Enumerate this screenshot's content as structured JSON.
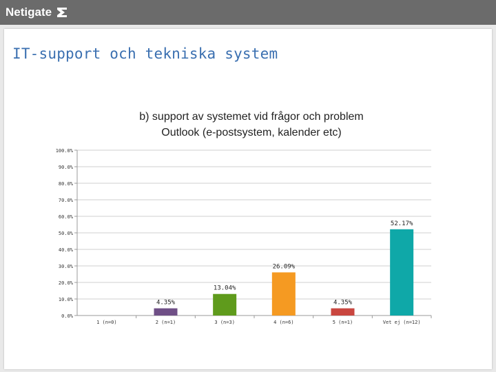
{
  "header": {
    "brand": "Netigate",
    "brand_icon": "netigate-logo-icon",
    "bar_color": "#6b6b6b"
  },
  "page": {
    "title": "IT-support och tekniska system",
    "title_color": "#3a6fb0"
  },
  "chart_data": {
    "type": "bar",
    "title_line1": "b) support av systemet vid frågor och problem",
    "title_line2": "Outlook (e-postsystem, kalender etc)",
    "categories": [
      "1 (n=0)",
      "2 (n=1)",
      "3 (n=3)",
      "4 (n=6)",
      "5 (n=1)",
      "Vet ej (n=12)"
    ],
    "values": [
      0,
      4.35,
      13.04,
      26.09,
      4.35,
      52.17
    ],
    "value_labels": [
      "",
      "4.35%",
      "13.04%",
      "26.09%",
      "4.35%",
      "52.17%"
    ],
    "colors": [
      "#7f7f7f",
      "#6f4f86",
      "#5f9b1c",
      "#f59a22",
      "#c9463f",
      "#0fa8a8"
    ],
    "ylim": [
      0,
      100
    ],
    "yticks": [
      0,
      10,
      20,
      30,
      40,
      50,
      60,
      70,
      80,
      90,
      100
    ],
    "ytick_labels": [
      "0.0%",
      "10.0%",
      "20.0%",
      "30.0%",
      "40.0%",
      "50.0%",
      "60.0%",
      "70.0%",
      "80.0%",
      "90.0%",
      "100.0%"
    ],
    "grid": true,
    "legend": "none"
  }
}
